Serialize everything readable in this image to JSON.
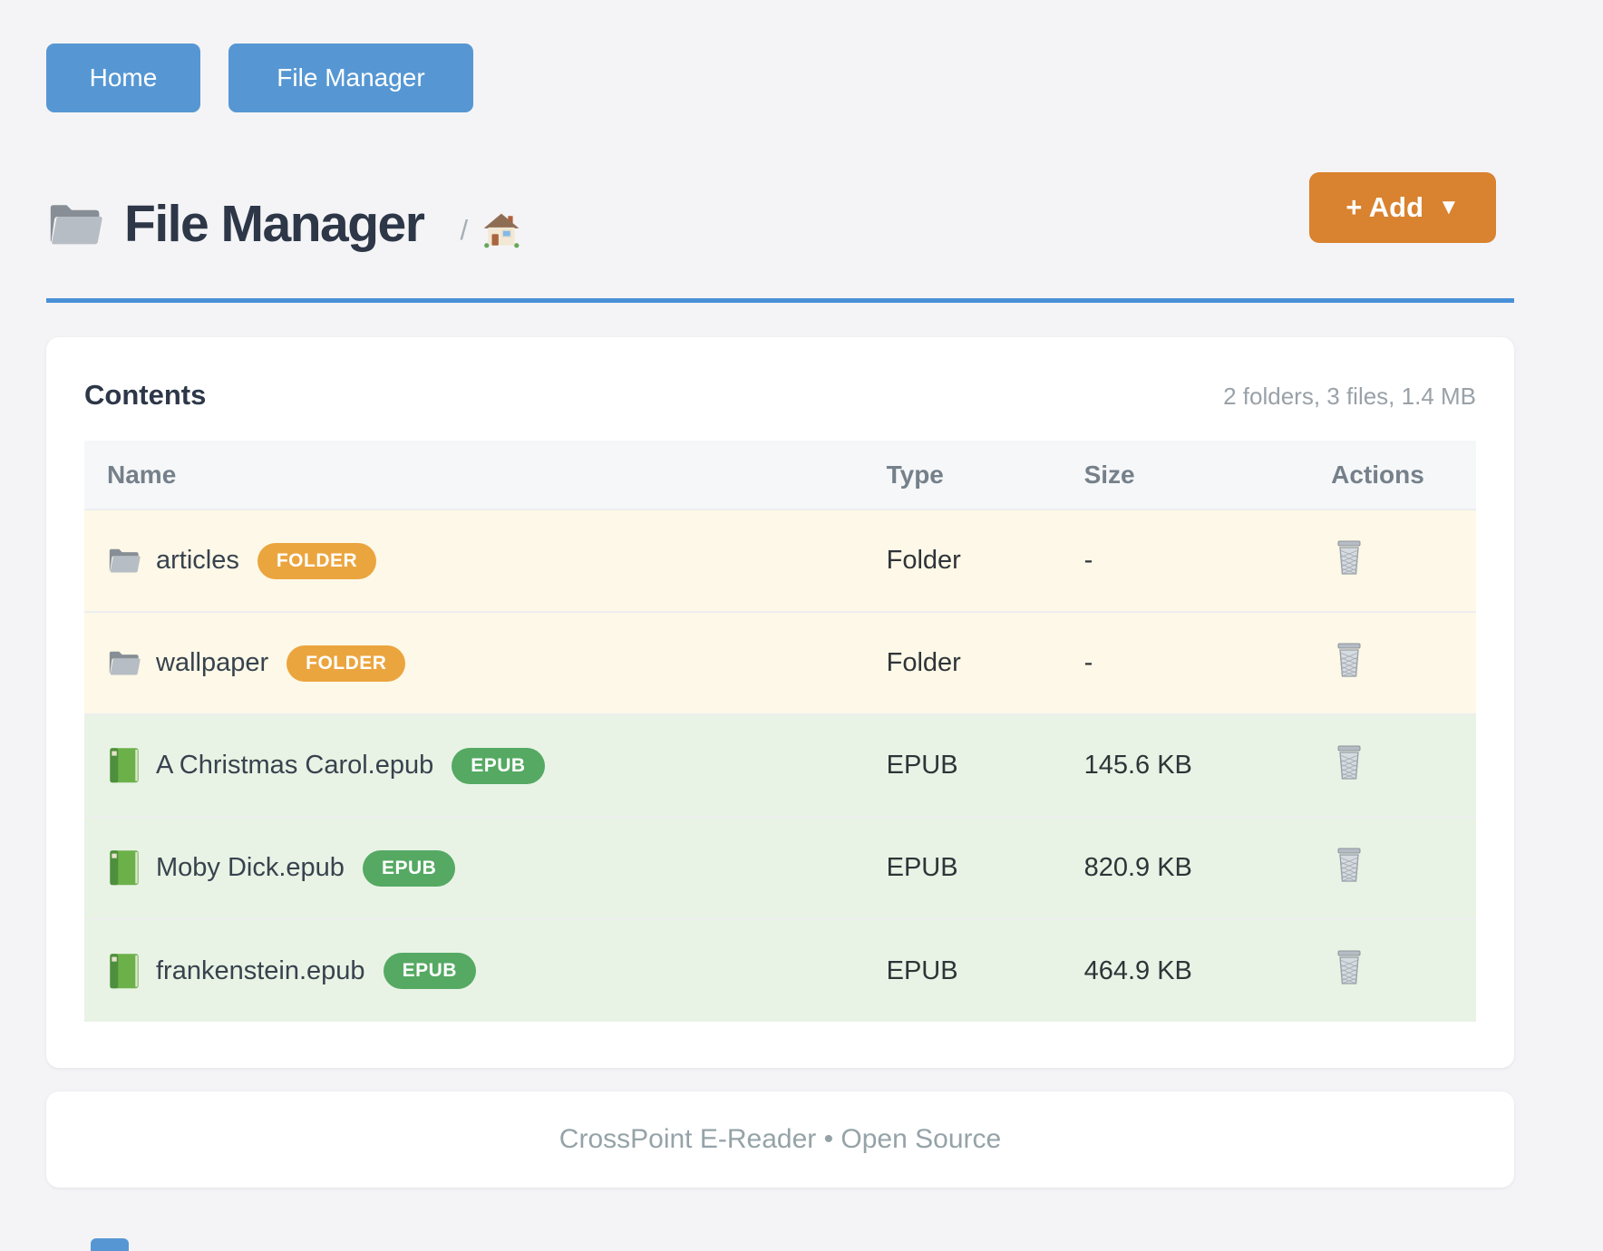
{
  "nav": {
    "home_label": "Home",
    "file_manager_label": "File Manager"
  },
  "header": {
    "title": "File Manager",
    "breadcrumb_separator": "/",
    "add_button": {
      "label": "+ Add",
      "caret": "▼"
    }
  },
  "panel": {
    "title": "Contents",
    "summary": "2 folders, 3 files, 1.4 MB",
    "table": {
      "columns": [
        "Name",
        "Type",
        "Size",
        "Actions"
      ],
      "rows": [
        {
          "name": "articles",
          "badge": "FOLDER",
          "kind": "folder",
          "type": "Folder",
          "size": "-"
        },
        {
          "name": "wallpaper",
          "badge": "FOLDER",
          "kind": "folder",
          "type": "Folder",
          "size": "-"
        },
        {
          "name": "A Christmas Carol.epub",
          "badge": "EPUB",
          "kind": "epub",
          "type": "EPUB",
          "size": "145.6 KB"
        },
        {
          "name": "Moby Dick.epub",
          "badge": "EPUB",
          "kind": "epub",
          "type": "EPUB",
          "size": "820.9 KB"
        },
        {
          "name": "frankenstein.epub",
          "badge": "EPUB",
          "kind": "epub",
          "type": "EPUB",
          "size": "464.9 KB"
        }
      ]
    }
  },
  "footer": {
    "text": "CrossPoint E-Reader • Open Source"
  },
  "colors": {
    "accent-blue": "#5697d3",
    "accent-orange": "#d9822f",
    "badge-orange": "#eba53e",
    "badge-green": "#55a963",
    "row-folder-bg": "#fdf8e7",
    "row-epub-bg": "#e8f3e5",
    "heading": "#2d3748",
    "muted": "#99a1a8"
  }
}
